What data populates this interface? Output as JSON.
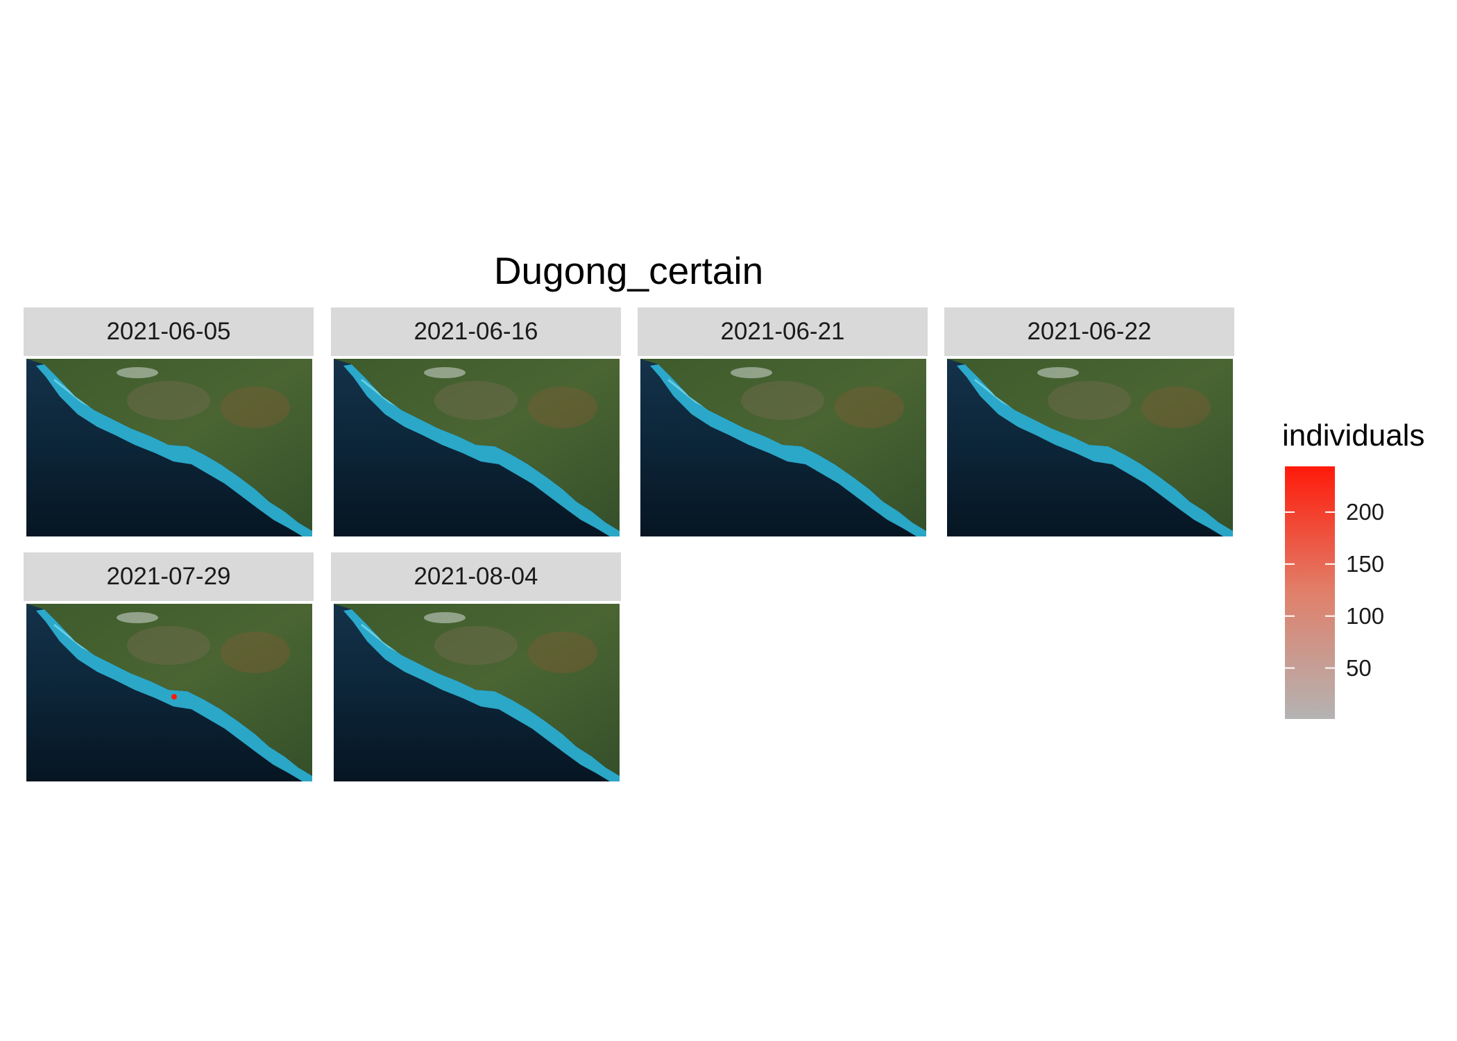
{
  "title": "Dugong_certain",
  "facets": [
    {
      "date": "2021-06-05",
      "points": []
    },
    {
      "date": "2021-06-16",
      "points": []
    },
    {
      "date": "2021-06-21",
      "points": []
    },
    {
      "date": "2021-06-22",
      "points": []
    },
    {
      "date": "2021-07-29",
      "points": [
        {
          "individuals": 240
        }
      ]
    },
    {
      "date": "2021-08-04",
      "points": []
    }
  ],
  "legend": {
    "title": "individuals",
    "ticks": [
      "200",
      "150",
      "100",
      "50"
    ],
    "tick_values": [
      200,
      150,
      100,
      50
    ],
    "range": [
      1,
      244
    ],
    "low_color": "#b3b3b3",
    "high_color": "#ff1a0a"
  },
  "basemap": {
    "type": "satellite imagery",
    "ocean_color": "#0a1c2e",
    "reef_color": "#2fb6d8",
    "land_color": "#3f5a2a"
  }
}
